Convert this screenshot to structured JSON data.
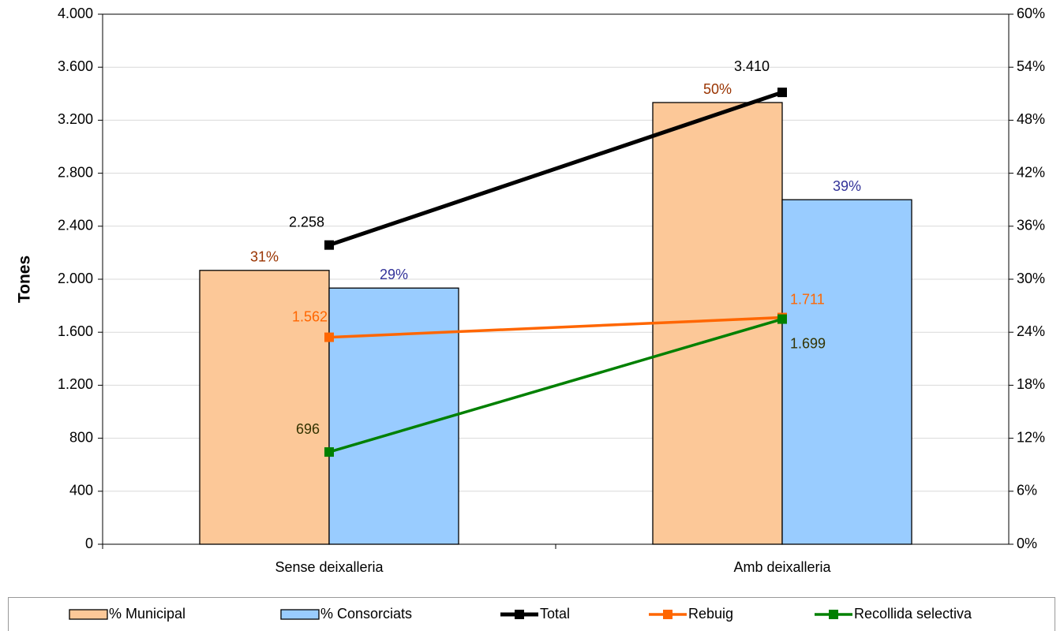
{
  "chart_data": {
    "type": "bar",
    "y_label": "Tones",
    "categories": [
      "Sense deixalleria",
      "Amb deixalleria"
    ],
    "ylim": [
      0,
      4000
    ],
    "yticks": [
      0,
      400,
      800,
      {
        "value": 1200,
        "label": "1.200"
      },
      {
        "value": 1600,
        "label": "1.600"
      },
      {
        "value": 2000,
        "label": "2.000"
      },
      {
        "value": 2400,
        "label": "2.400"
      },
      {
        "value": 2800,
        "label": "2.800"
      },
      {
        "value": 3200,
        "label": "3.200"
      },
      {
        "value": 3600,
        "label": "3.600"
      },
      {
        "value": 4000,
        "label": "4.000"
      }
    ],
    "y2lim": [
      0,
      60
    ],
    "y2ticks": [
      {
        "value": 0,
        "label": "0%"
      },
      {
        "value": 6,
        "label": "6%"
      },
      {
        "value": 12,
        "label": "12%"
      },
      {
        "value": 18,
        "label": "18%"
      },
      {
        "value": 24,
        "label": "24%"
      },
      {
        "value": 30,
        "label": "30%"
      },
      {
        "value": 36,
        "label": "36%"
      },
      {
        "value": 42,
        "label": "42%"
      },
      {
        "value": 48,
        "label": "48%"
      },
      {
        "value": 54,
        "label": "54%"
      },
      {
        "value": 60,
        "label": "60%"
      }
    ],
    "grid": true,
    "legend": "bottom",
    "series": [
      {
        "name": "% Municipal",
        "type": "bar",
        "axis": "y2",
        "color": "#fcc898",
        "label_color": "#993300",
        "values": [
          31,
          50
        ],
        "value_labels": [
          "31%",
          "50%"
        ]
      },
      {
        "name": "% Consorciats",
        "type": "bar",
        "axis": "y2",
        "color": "#99ccff",
        "label_color": "#333399",
        "values": [
          29,
          39
        ],
        "value_labels": [
          "29%",
          "39%"
        ]
      },
      {
        "name": "Total",
        "type": "line",
        "color": "#000000",
        "label_color": "#000000",
        "values": [
          2258,
          3410
        ],
        "value_labels": [
          "2.258",
          "3.410"
        ]
      },
      {
        "name": "Rebuig",
        "type": "line",
        "color": "#ff6600",
        "label_color": "#ff6600",
        "values": [
          1562,
          1711
        ],
        "value_labels": [
          "1.562",
          "1.711"
        ]
      },
      {
        "name": "Recollida selectiva",
        "type": "line",
        "color": "#008000",
        "label_color": "#333300",
        "values": [
          696,
          1699
        ],
        "value_labels": [
          "696",
          "1.699"
        ]
      }
    ]
  }
}
